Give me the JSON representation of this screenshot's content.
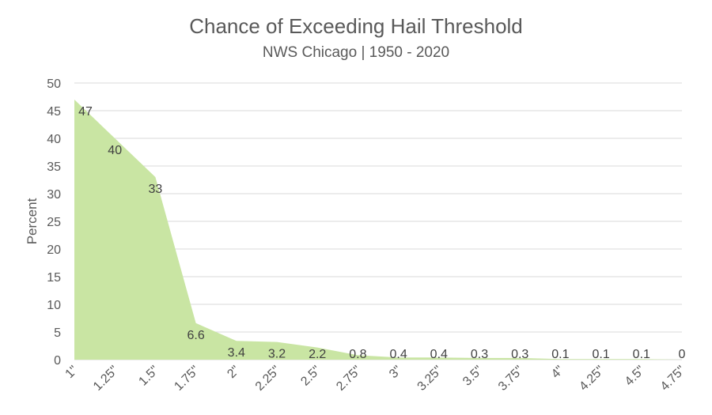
{
  "chart_data": {
    "type": "area",
    "title": "Chance of Exceeding Hail Threshold",
    "subtitle": "NWS Chicago | 1950 - 2020",
    "xlabel": "",
    "ylabel": "Percent",
    "categories": [
      "1\"",
      "1.25\"",
      "1.5\"",
      "1.75\"",
      "2\"",
      "2.25\"",
      "2.5\"",
      "2.75\"",
      "3\"",
      "3.25\"",
      "3.5\"",
      "3.75\"",
      "4\"",
      "4.25\"",
      "4.5\"",
      "4.75\""
    ],
    "values": [
      47,
      40,
      33,
      6.6,
      3.4,
      3.2,
      2.2,
      0.8,
      0.4,
      0.4,
      0.3,
      0.3,
      0.1,
      0.1,
      0.1,
      0
    ],
    "data_labels": [
      "47",
      "40",
      "33",
      "6.6",
      "3.4",
      "3.2",
      "2.2",
      "0.8",
      "0.4",
      "0.4",
      "0.3",
      "0.3",
      "0.1",
      "0.1",
      "0.1",
      "0"
    ],
    "y_ticks": [
      0,
      5,
      10,
      15,
      20,
      25,
      30,
      35,
      40,
      45,
      50
    ],
    "ylim": [
      0,
      50
    ],
    "grid": true,
    "legend": "none",
    "fill_color": "#c9e5a3",
    "grid_color": "#d9d9d9",
    "text_color": "#595959",
    "label_color": "#404040"
  }
}
